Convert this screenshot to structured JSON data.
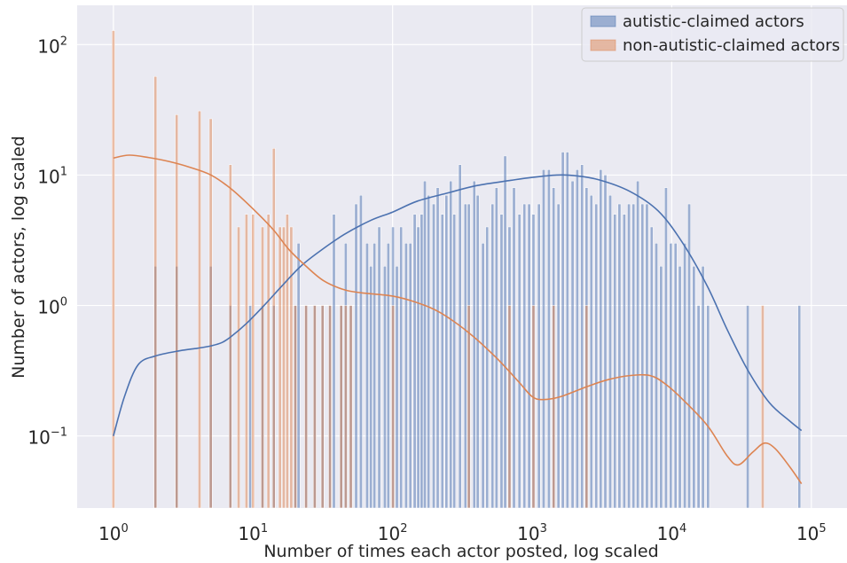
{
  "chart_data": {
    "type": "histogram",
    "title": "",
    "xlabel": "Number of times each actor posted, log scaled",
    "ylabel": "Number of actors, log scaled",
    "x_scale": "log",
    "y_scale": "log",
    "xlim": [
      0.55,
      180000
    ],
    "ylim": [
      0.028,
      200
    ],
    "grid": true,
    "background": "#eaeaf2",
    "legend_position": "top-right",
    "x_ticks": [
      {
        "value": 1,
        "base": "10",
        "exp": "0"
      },
      {
        "value": 10,
        "base": "10",
        "exp": "1"
      },
      {
        "value": 100,
        "base": "10",
        "exp": "2"
      },
      {
        "value": 1000,
        "base": "10",
        "exp": "3"
      },
      {
        "value": 10000,
        "base": "10",
        "exp": "4"
      },
      {
        "value": 100000,
        "base": "10",
        "exp": "5"
      }
    ],
    "y_ticks": [
      {
        "value": 0.1,
        "base": "10",
        "exp": "−1"
      },
      {
        "value": 1,
        "base": "10",
        "exp": "0"
      },
      {
        "value": 10,
        "base": "10",
        "exp": "1"
      },
      {
        "value": 100,
        "base": "10",
        "exp": "2"
      }
    ],
    "series": [
      {
        "name": "autistic-claimed actors",
        "color": "#4c72b0",
        "bars": [
          [
            2,
            2
          ],
          [
            2.84,
            2
          ],
          [
            4.98,
            2
          ],
          [
            6.89,
            1
          ],
          [
            9.55,
            1
          ],
          [
            11.7,
            1
          ],
          [
            14.1,
            1
          ],
          [
            20.1,
            1
          ],
          [
            21.2,
            3
          ],
          [
            24.0,
            1
          ],
          [
            27.7,
            1
          ],
          [
            31.5,
            1
          ],
          [
            35.6,
            1
          ],
          [
            38.0,
            5
          ],
          [
            42.8,
            1
          ],
          [
            46.2,
            3
          ],
          [
            50.2,
            1
          ],
          [
            54.8,
            6
          ],
          [
            59.3,
            7
          ],
          [
            65.7,
            3
          ],
          [
            69.9,
            2
          ],
          [
            74.1,
            3
          ],
          [
            80.2,
            4
          ],
          [
            88.0,
            2
          ],
          [
            93.2,
            3
          ],
          [
            100.6,
            4
          ],
          [
            107.4,
            2
          ],
          [
            115.0,
            4
          ],
          [
            125.0,
            3
          ],
          [
            134.1,
            3
          ],
          [
            144.0,
            5
          ],
          [
            152.7,
            4
          ],
          [
            161.4,
            5
          ],
          [
            170.2,
            9
          ],
          [
            180.9,
            7
          ],
          [
            197.0,
            6
          ],
          [
            210.5,
            8
          ],
          [
            227.2,
            5
          ],
          [
            243.0,
            7
          ],
          [
            261.0,
            9
          ],
          [
            276.6,
            5
          ],
          [
            304.0,
            12
          ],
          [
            332.5,
            6
          ],
          [
            351.6,
            6
          ],
          [
            384.6,
            9
          ],
          [
            407.0,
            7
          ],
          [
            444.4,
            3
          ],
          [
            475.6,
            4
          ],
          [
            519.5,
            6
          ],
          [
            555.0,
            8
          ],
          [
            603.0,
            5
          ],
          [
            640.2,
            14
          ],
          [
            687.8,
            4
          ],
          [
            740.8,
            8
          ],
          [
            810.4,
            5
          ],
          [
            879.3,
            6
          ],
          [
            951.0,
            6
          ],
          [
            1021.0,
            5
          ],
          [
            1117.6,
            6
          ],
          [
            1207.6,
            11
          ],
          [
            1317.7,
            11
          ],
          [
            1424.3,
            8
          ],
          [
            1542.4,
            6
          ],
          [
            1658.0,
            15
          ],
          [
            1788.0,
            15
          ],
          [
            1946.7,
            9
          ],
          [
            2104.0,
            11
          ],
          [
            2275.0,
            12
          ],
          [
            2451.7,
            8
          ],
          [
            2653.5,
            7
          ],
          [
            2876.8,
            6
          ],
          [
            3097.0,
            11
          ],
          [
            3341.7,
            10
          ],
          [
            3623.0,
            7
          ],
          [
            3910.0,
            5
          ],
          [
            4217.7,
            6
          ],
          [
            4567.8,
            5
          ],
          [
            4928.6,
            6
          ],
          [
            5316.0,
            6
          ],
          [
            5707.0,
            9
          ],
          [
            6159.0,
            6
          ],
          [
            6640.2,
            6
          ],
          [
            7176.0,
            4
          ],
          [
            7751.0,
            3
          ],
          [
            8385.0,
            2
          ],
          [
            9093.3,
            8
          ],
          [
            9846.0,
            3
          ],
          [
            10644.0,
            3
          ],
          [
            11428.4,
            2
          ],
          [
            12388.0,
            3
          ],
          [
            13322.0,
            6
          ],
          [
            14401.5,
            2
          ],
          [
            15549.6,
            1
          ],
          [
            16725.0,
            2
          ],
          [
            18189.6,
            1
          ],
          [
            35000.0,
            1
          ],
          [
            82000.0,
            1
          ]
        ],
        "kde": [
          [
            1,
            0.1
          ],
          [
            1.2,
            0.2
          ],
          [
            1.5,
            0.35
          ],
          [
            2,
            0.41
          ],
          [
            3,
            0.45
          ],
          [
            4,
            0.47
          ],
          [
            5,
            0.49
          ],
          [
            6,
            0.52
          ],
          [
            7,
            0.58
          ],
          [
            9,
            0.73
          ],
          [
            12,
            1.0
          ],
          [
            16,
            1.4
          ],
          [
            22,
            2.0
          ],
          [
            30,
            2.6
          ],
          [
            45,
            3.5
          ],
          [
            70,
            4.5
          ],
          [
            100,
            5.2
          ],
          [
            150,
            6.3
          ],
          [
            250,
            7.3
          ],
          [
            400,
            8.3
          ],
          [
            700,
            9.1
          ],
          [
            1000,
            9.6
          ],
          [
            1500,
            10.0
          ],
          [
            2000,
            9.9
          ],
          [
            3000,
            9.2
          ],
          [
            5000,
            7.5
          ],
          [
            8000,
            5.3
          ],
          [
            12000,
            3.0
          ],
          [
            18000,
            1.4
          ],
          [
            25000,
            0.65
          ],
          [
            35000,
            0.32
          ],
          [
            50000,
            0.18
          ],
          [
            70000,
            0.13
          ],
          [
            85000,
            0.11
          ]
        ]
      },
      {
        "name": "non-autistic-claimed actors",
        "color": "#dd8452",
        "bars": [
          [
            1.0,
            128
          ],
          [
            2.0,
            57
          ],
          [
            2.84,
            29
          ],
          [
            4.14,
            31
          ],
          [
            4.98,
            27
          ],
          [
            6.89,
            12
          ],
          [
            7.89,
            4
          ],
          [
            8.98,
            5
          ],
          [
            10.0,
            5
          ],
          [
            11.7,
            4
          ],
          [
            12.9,
            5
          ],
          [
            14.1,
            16
          ],
          [
            15.6,
            4
          ],
          [
            16.6,
            4
          ],
          [
            17.6,
            5
          ],
          [
            18.8,
            4
          ],
          [
            20.1,
            1
          ],
          [
            24.0,
            1
          ],
          [
            27.7,
            1
          ],
          [
            31.5,
            1
          ],
          [
            35.6,
            1
          ],
          [
            42.8,
            1
          ],
          [
            46.2,
            1
          ],
          [
            50.2,
            1
          ],
          [
            100.6,
            1
          ],
          [
            351.6,
            1
          ],
          [
            687.8,
            1
          ],
          [
            1021.0,
            1
          ],
          [
            1424.3,
            1
          ],
          [
            2451.7,
            1
          ],
          [
            44800.0,
            1
          ]
        ],
        "kde": [
          [
            1,
            13.5
          ],
          [
            1.3,
            14.2
          ],
          [
            1.8,
            13.6
          ],
          [
            2.5,
            12.7
          ],
          [
            3.5,
            11.5
          ],
          [
            5,
            10.0
          ],
          [
            7,
            7.8
          ],
          [
            10,
            5.5
          ],
          [
            14,
            3.8
          ],
          [
            18,
            2.7
          ],
          [
            24,
            2.0
          ],
          [
            32,
            1.55
          ],
          [
            45,
            1.32
          ],
          [
            60,
            1.25
          ],
          [
            100,
            1.18
          ],
          [
            150,
            1.05
          ],
          [
            220,
            0.88
          ],
          [
            350,
            0.62
          ],
          [
            550,
            0.4
          ],
          [
            800,
            0.26
          ],
          [
            1000,
            0.2
          ],
          [
            1200,
            0.19
          ],
          [
            1600,
            0.2
          ],
          [
            2500,
            0.24
          ],
          [
            3500,
            0.27
          ],
          [
            5000,
            0.29
          ],
          [
            7000,
            0.29
          ],
          [
            9000,
            0.25
          ],
          [
            12000,
            0.19
          ],
          [
            18000,
            0.12
          ],
          [
            25000,
            0.07
          ],
          [
            30000,
            0.06
          ],
          [
            38000,
            0.075
          ],
          [
            46000,
            0.088
          ],
          [
            55000,
            0.08
          ],
          [
            70000,
            0.058
          ],
          [
            85000,
            0.043
          ]
        ]
      }
    ]
  }
}
